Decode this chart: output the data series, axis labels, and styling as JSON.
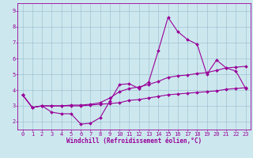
{
  "xlabel": "Windchill (Refroidissement éolien,°C)",
  "xlim": [
    -0.5,
    23.5
  ],
  "ylim": [
    1.5,
    9.5
  ],
  "xticks": [
    0,
    1,
    2,
    3,
    4,
    5,
    6,
    7,
    8,
    9,
    10,
    11,
    12,
    13,
    14,
    15,
    16,
    17,
    18,
    19,
    20,
    21,
    22,
    23
  ],
  "yticks": [
    2,
    3,
    4,
    5,
    6,
    7,
    8,
    9
  ],
  "bg_color": "#cce8ee",
  "line_color": "#990099",
  "grid_color": "#99bbcc",
  "line1_y": [
    3.7,
    2.9,
    3.0,
    2.6,
    2.5,
    2.5,
    1.85,
    1.9,
    2.25,
    3.3,
    4.35,
    4.4,
    4.1,
    4.5,
    6.5,
    8.6,
    7.7,
    7.2,
    6.9,
    5.0,
    5.9,
    5.4,
    5.2,
    4.1
  ],
  "line2_y": [
    3.7,
    2.9,
    3.0,
    3.0,
    3.0,
    3.05,
    3.05,
    3.1,
    3.2,
    3.5,
    3.9,
    4.1,
    4.2,
    4.35,
    4.55,
    4.8,
    4.9,
    4.95,
    5.05,
    5.1,
    5.25,
    5.4,
    5.45,
    5.5
  ],
  "line3_y": [
    3.7,
    2.9,
    3.0,
    3.0,
    3.0,
    3.0,
    3.0,
    3.05,
    3.1,
    3.15,
    3.2,
    3.35,
    3.4,
    3.5,
    3.6,
    3.7,
    3.75,
    3.8,
    3.85,
    3.9,
    3.95,
    4.05,
    4.1,
    4.15
  ],
  "marker": "D",
  "markersize": 2.0,
  "linewidth": 0.8,
  "tick_fontsize": 5.0,
  "xlabel_fontsize": 5.5
}
